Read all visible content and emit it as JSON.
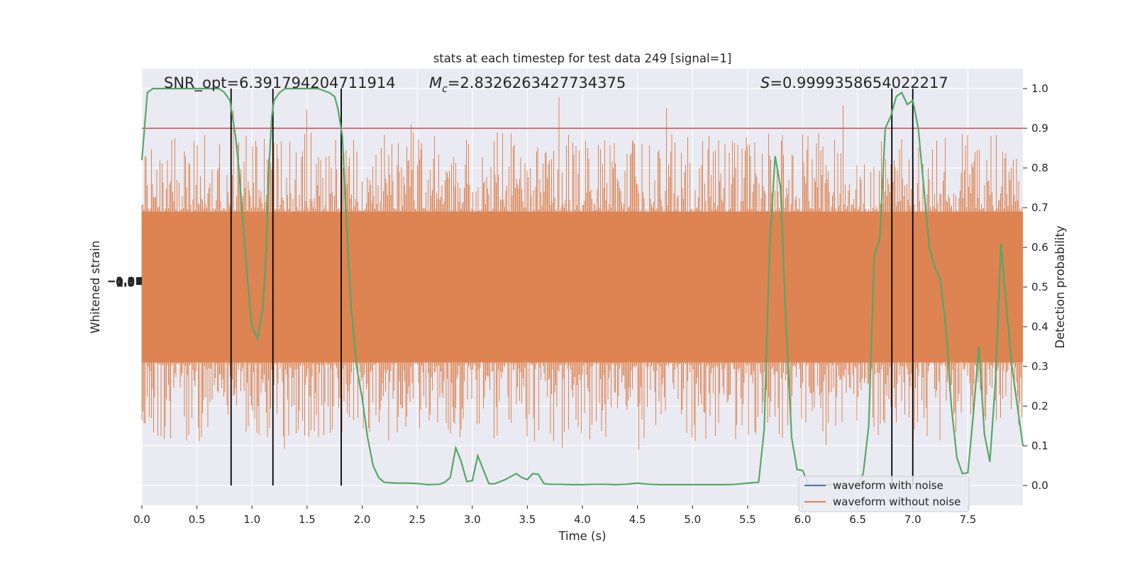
{
  "chart_data": {
    "type": "line",
    "title": "stats at each timestep for test data 249 [signal=1]",
    "xlabel": "Time (s)",
    "ylabel_left": "Whitened strain",
    "ylabel_right": "Detection probability",
    "xlim": [
      0.0,
      8.0
    ],
    "ylim_right": [
      -0.05,
      1.05
    ],
    "grid": true,
    "background": "#eaeaf2",
    "x_ticks": [
      "0.0",
      "0.5",
      "1.0",
      "1.5",
      "2.0",
      "2.5",
      "3.0",
      "3.5",
      "4.0",
      "4.5",
      "5.0",
      "5.5",
      "6.0",
      "6.5",
      "7.0",
      "7.5"
    ],
    "y_right_ticks": [
      "0.0",
      "0.1",
      "0.2",
      "0.3",
      "0.4",
      "0.5",
      "0.6",
      "0.7",
      "0.8",
      "0.9",
      "1.0"
    ],
    "y_left_ticks": [
      "−1.0",
      "−0.5",
      "0.0",
      "0.5",
      "1.0"
    ],
    "annotations": {
      "snr": "SNR_opt=6.391794204711914",
      "mc_symbol": "M",
      "mc_sub": "c",
      "mc_value": "=2.8326263427734375",
      "s_symbol": "S",
      "s_value": "=0.9999358654022217"
    },
    "threshold": {
      "value": 0.9,
      "color": "#c44e52"
    },
    "vertical_lines": [
      0.81,
      1.19,
      1.81,
      6.81,
      7.0
    ],
    "legend": {
      "position": "lower-right",
      "entries": [
        {
          "label": "waveform with noise",
          "color": "#4c72b0"
        },
        {
          "label": "waveform without noise",
          "color": "#dd8452"
        }
      ]
    },
    "noise_band": {
      "color": "#dd8452",
      "core_low": 0.31,
      "core_high": 0.69,
      "spike_low_min": 0.09,
      "spike_high_max": 1.0
    },
    "series": [
      {
        "name": "Detection probability",
        "color": "#55a868",
        "x": [
          0.0,
          0.05,
          0.1,
          0.2,
          0.3,
          0.4,
          0.5,
          0.6,
          0.7,
          0.75,
          0.8,
          0.85,
          0.88,
          0.93,
          0.98,
          1.0,
          1.05,
          1.1,
          1.13,
          1.15,
          1.18,
          1.2,
          1.25,
          1.3,
          1.4,
          1.5,
          1.6,
          1.7,
          1.75,
          1.78,
          1.82,
          1.87,
          1.9,
          1.95,
          2.0,
          2.05,
          2.1,
          2.15,
          2.2,
          2.3,
          2.4,
          2.5,
          2.6,
          2.7,
          2.75,
          2.8,
          2.85,
          2.9,
          2.95,
          3.0,
          3.05,
          3.1,
          3.15,
          3.2,
          3.3,
          3.4,
          3.45,
          3.5,
          3.55,
          3.6,
          3.65,
          3.7,
          3.75,
          3.8,
          3.9,
          4.0,
          4.1,
          4.2,
          4.3,
          4.4,
          4.5,
          4.6,
          4.7,
          4.8,
          4.9,
          5.0,
          5.1,
          5.2,
          5.3,
          5.4,
          5.5,
          5.6,
          5.65,
          5.7,
          5.75,
          5.8,
          5.85,
          5.9,
          5.95,
          6.0,
          6.05,
          6.1,
          6.2,
          6.3,
          6.4,
          6.5,
          6.55,
          6.6,
          6.65,
          6.7,
          6.75,
          6.8,
          6.85,
          6.9,
          6.95,
          7.0,
          7.05,
          7.1,
          7.15,
          7.2,
          7.25,
          7.3,
          7.35,
          7.4,
          7.45,
          7.5,
          7.55,
          7.6,
          7.65,
          7.7,
          7.75,
          7.8,
          7.85,
          7.9,
          7.95,
          8.0
        ],
        "y": [
          0.82,
          0.99,
          1.0,
          1.0,
          1.0,
          1.0,
          1.0,
          1.0,
          1.0,
          0.99,
          0.97,
          0.88,
          0.8,
          0.62,
          0.45,
          0.4,
          0.37,
          0.45,
          0.6,
          0.78,
          0.93,
          0.97,
          0.99,
          1.0,
          1.0,
          1.0,
          1.0,
          0.99,
          0.98,
          0.95,
          0.88,
          0.6,
          0.45,
          0.3,
          0.22,
          0.12,
          0.05,
          0.02,
          0.008,
          0.006,
          0.006,
          0.005,
          0.002,
          0.003,
          0.008,
          0.02,
          0.095,
          0.06,
          0.01,
          0.012,
          0.075,
          0.04,
          0.005,
          0.004,
          0.015,
          0.03,
          0.02,
          0.015,
          0.03,
          0.028,
          0.005,
          0.003,
          0.003,
          0.003,
          0.002,
          0.002,
          0.003,
          0.003,
          0.002,
          0.003,
          0.006,
          0.003,
          0.002,
          0.002,
          0.002,
          0.002,
          0.002,
          0.002,
          0.002,
          0.003,
          0.006,
          0.008,
          0.14,
          0.6,
          0.83,
          0.75,
          0.4,
          0.12,
          0.04,
          0.038,
          0.003,
          0.002,
          0.002,
          0.002,
          0.003,
          0.002,
          0.03,
          0.15,
          0.58,
          0.62,
          0.9,
          0.93,
          0.98,
          0.99,
          0.96,
          0.97,
          0.9,
          0.75,
          0.6,
          0.55,
          0.52,
          0.4,
          0.2,
          0.07,
          0.03,
          0.032,
          0.18,
          0.35,
          0.13,
          0.06,
          0.26,
          0.61,
          0.45,
          0.3,
          0.2,
          0.1
        ]
      }
    ]
  }
}
